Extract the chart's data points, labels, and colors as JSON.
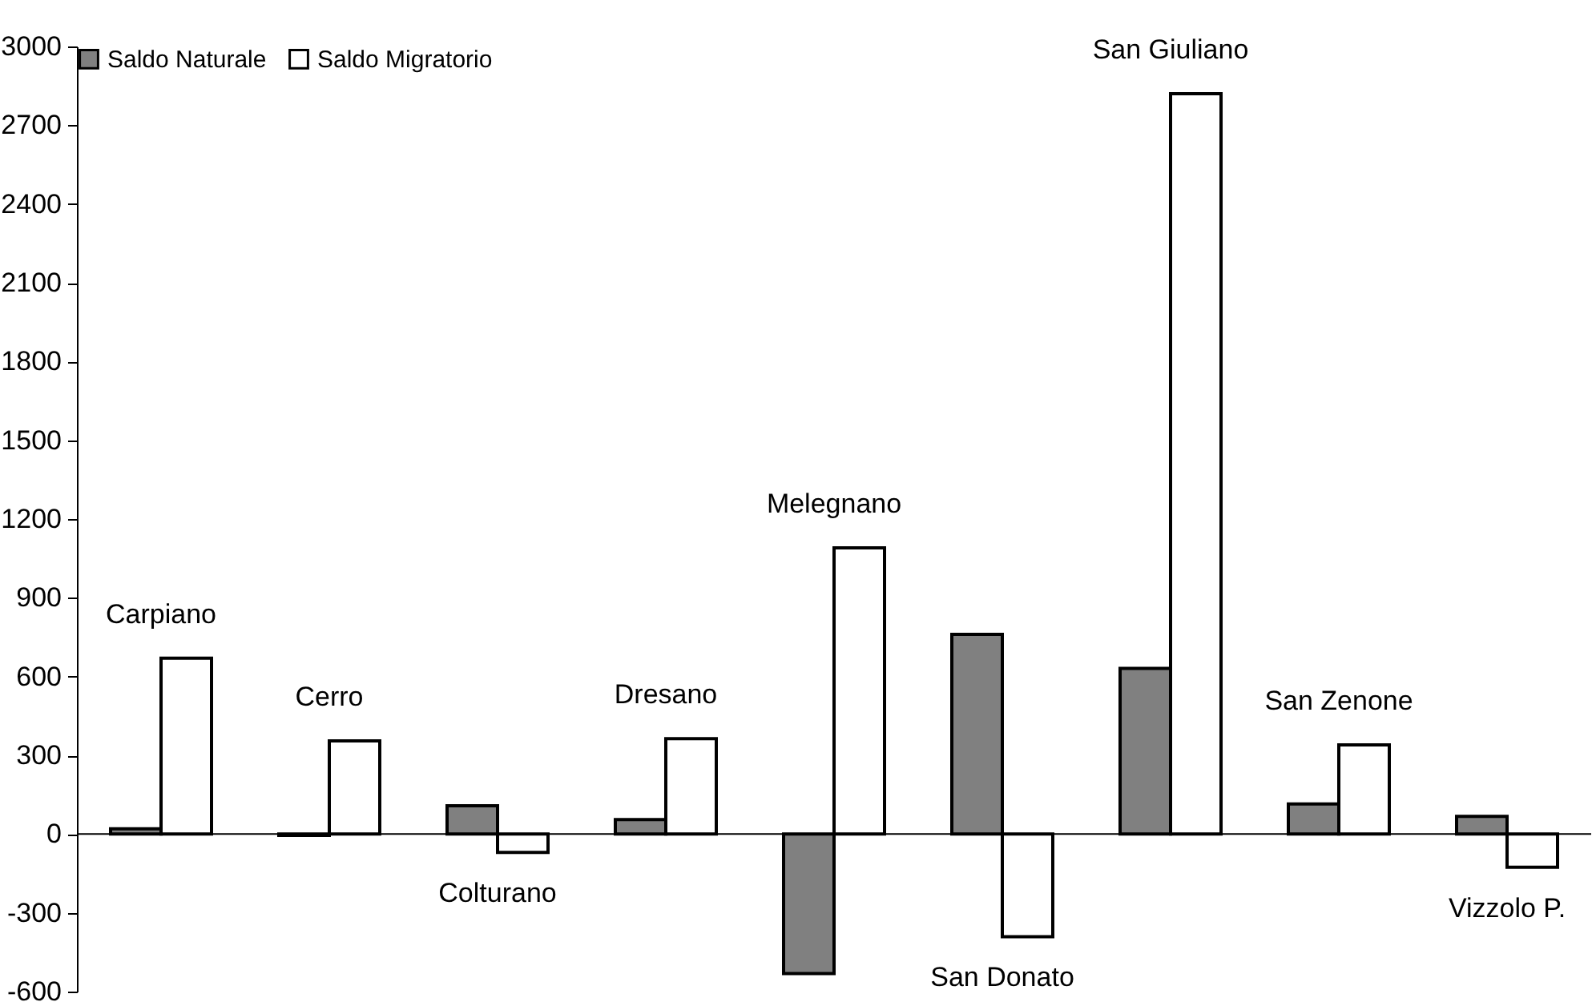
{
  "chart_data": {
    "type": "bar",
    "categories": [
      "Carpiano",
      "Cerro",
      "Colturano",
      "Dresano",
      "Melegnano",
      "San Donato",
      "San Giuliano",
      "San Zenone",
      "Vizzolo P."
    ],
    "series": [
      {
        "name": "Saldo Naturale",
        "color": "#808080",
        "values": [
          20,
          -5,
          108,
          55,
          -531,
          761,
          631,
          115,
          67
        ]
      },
      {
        "name": "Saldo Migratorio",
        "color": "#ffffff",
        "values": [
          670,
          355,
          -70,
          363,
          1090,
          -391,
          2820,
          340,
          -126
        ]
      }
    ],
    "ylim": [
      -600,
      3000
    ],
    "yticks": [
      -600,
      -300,
      0,
      300,
      600,
      900,
      1200,
      1500,
      1800,
      2100,
      2400,
      2700,
      3000
    ],
    "legend": "top left"
  }
}
